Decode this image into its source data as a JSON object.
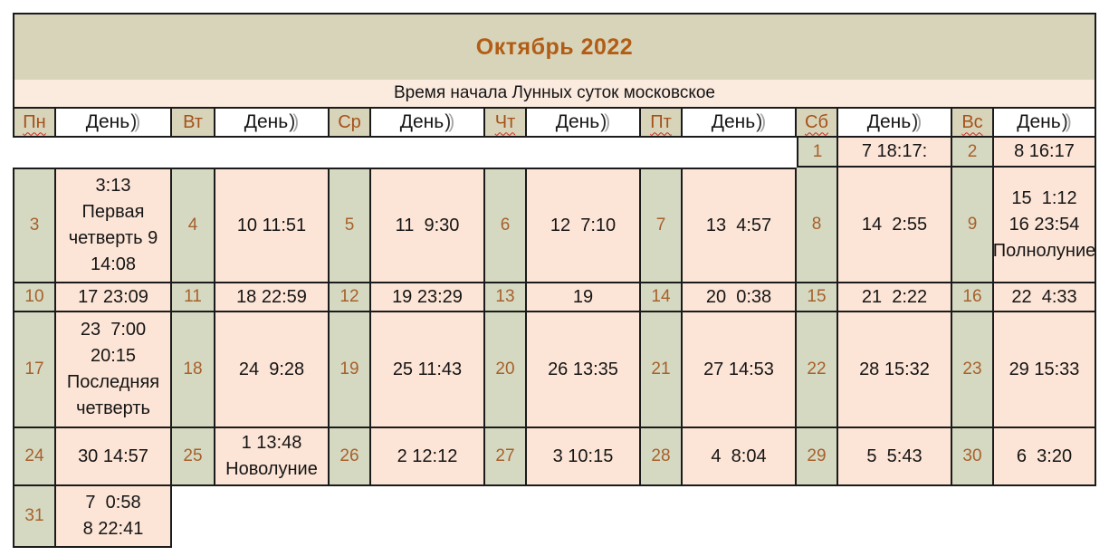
{
  "title": "Октябрь  2022",
  "subtitle": "Время начала Лунных суток московское",
  "day_header": {
    "label": "День",
    "moon": ")",
    "moon_ghost": ")"
  },
  "weekdays": [
    {
      "label": "Пн",
      "squiggle": true
    },
    {
      "label": "Вт",
      "squiggle": false
    },
    {
      "label": "Ср",
      "squiggle": false
    },
    {
      "label": "Чт",
      "squiggle": true
    },
    {
      "label": "Пт",
      "squiggle": true
    },
    {
      "label": "Сб",
      "squiggle": true
    },
    {
      "label": "Вс",
      "squiggle": true
    }
  ],
  "colors": {
    "band_olive": "#d8d4ba",
    "cell_sage": "#d6d9c2",
    "band_pink": "#fbeade",
    "cell_peach": "#fce4d6",
    "border": "#1b1b1b",
    "title_text": "#b25d15",
    "weekday_text": "#a6511a",
    "number_text": "#a7602b",
    "squiggle": "#cc2b1d"
  },
  "rows": [
    {
      "cells": [
        null,
        null,
        null,
        null,
        null,
        {
          "date": "1",
          "lines": [
            "7 18:17:"
          ]
        },
        {
          "date": "2",
          "lines": [
            "8 16:17"
          ]
        }
      ]
    },
    {
      "cells": [
        {
          "date": "3",
          "lines": [
            "3:13",
            "Первая",
            "четверть 9",
            "14:08"
          ]
        },
        {
          "date": "4",
          "lines": [
            "10 11:51"
          ]
        },
        {
          "date": "5",
          "lines": [
            "11  9:30"
          ]
        },
        {
          "date": "6",
          "lines": [
            "12  7:10"
          ]
        },
        {
          "date": "7",
          "lines": [
            "13  4:57"
          ]
        },
        {
          "date": "8",
          "lines": [
            "14  2:55"
          ]
        },
        {
          "date": "9",
          "lines": [
            "15  1:12",
            "16 23:54",
            "Полнолуние"
          ]
        }
      ]
    },
    {
      "cells": [
        {
          "date": "10",
          "lines": [
            "17 23:09"
          ]
        },
        {
          "date": "11",
          "lines": [
            "18 22:59"
          ]
        },
        {
          "date": "12",
          "lines": [
            "19 23:29"
          ]
        },
        {
          "date": "13",
          "lines": [
            "19"
          ]
        },
        {
          "date": "14",
          "lines": [
            "20  0:38"
          ]
        },
        {
          "date": "15",
          "lines": [
            "21  2:22"
          ]
        },
        {
          "date": "16",
          "lines": [
            "22  4:33"
          ]
        }
      ]
    },
    {
      "cells": [
        {
          "date": "17",
          "lines": [
            "23  7:00",
            "20:15",
            "Последняя",
            "четверть"
          ]
        },
        {
          "date": "18",
          "lines": [
            "24  9:28"
          ]
        },
        {
          "date": "19",
          "lines": [
            "25 11:43"
          ]
        },
        {
          "date": "20",
          "lines": [
            "26 13:35"
          ]
        },
        {
          "date": "21",
          "lines": [
            "27 14:53"
          ]
        },
        {
          "date": "22",
          "lines": [
            "28 15:32"
          ]
        },
        {
          "date": "23",
          "lines": [
            "29 15:33"
          ]
        }
      ]
    },
    {
      "cells": [
        {
          "date": "24",
          "lines": [
            "30 14:57"
          ]
        },
        {
          "date": "25",
          "lines": [
            "1 13:48",
            "Новолуние"
          ]
        },
        {
          "date": "26",
          "lines": [
            "2 12:12"
          ]
        },
        {
          "date": "27",
          "lines": [
            "3 10:15"
          ]
        },
        {
          "date": "28",
          "lines": [
            "4  8:04"
          ]
        },
        {
          "date": "29",
          "lines": [
            "5  5:43"
          ]
        },
        {
          "date": "30",
          "lines": [
            "6  3:20"
          ]
        }
      ]
    },
    {
      "cells": [
        {
          "date": "31",
          "lines": [
            "7  0:58",
            "8 22:41"
          ]
        },
        null,
        null,
        null,
        null,
        null,
        null
      ]
    }
  ]
}
